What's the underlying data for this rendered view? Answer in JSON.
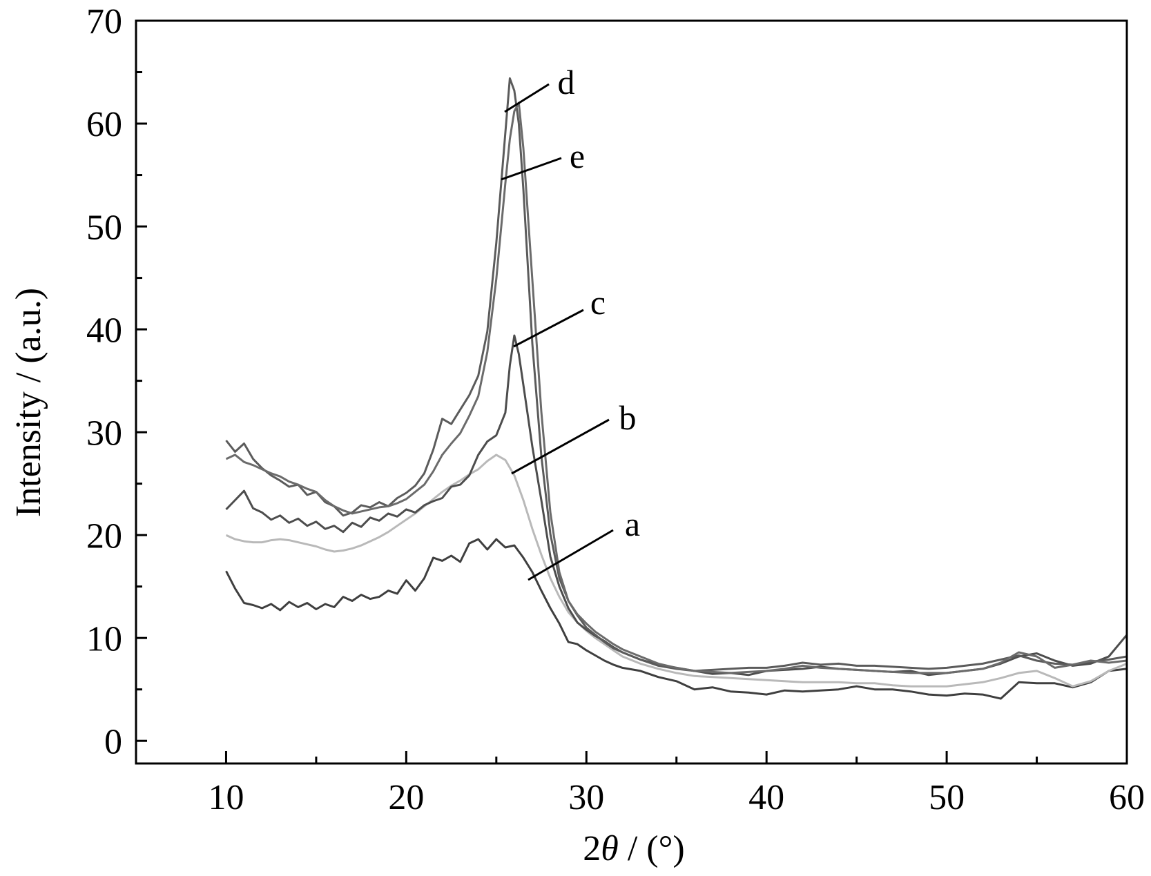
{
  "chart_data": {
    "type": "line",
    "title": "",
    "xlabel": "2θ / (°)",
    "ylabel": "Intensity / (a.u.)",
    "xlim": [
      5,
      60
    ],
    "ylim": [
      -2.2,
      70
    ],
    "xticks": [
      10,
      20,
      30,
      40,
      50,
      60
    ],
    "xticks_minor": [
      15,
      25,
      35,
      45,
      55
    ],
    "yticks": [
      0,
      10,
      20,
      30,
      40,
      50,
      60,
      70
    ],
    "yticks_minor": [
      5,
      15,
      25,
      35,
      45,
      55,
      65
    ],
    "grid": false,
    "legend": "none (series labelled directly with leader lines)",
    "series": [
      {
        "name": "a",
        "color": "#3f3f3f",
        "x": [
          10,
          10.5,
          11,
          11.5,
          12,
          12.5,
          13,
          13.5,
          14,
          14.5,
          15,
          15.5,
          16,
          16.5,
          17,
          17.5,
          18,
          18.5,
          19,
          19.5,
          20,
          20.5,
          21,
          21.5,
          22,
          22.5,
          23,
          23.5,
          24,
          24.5,
          25,
          25.5,
          26,
          26.5,
          27,
          27.5,
          28,
          28.5,
          29,
          29.5,
          30,
          30.5,
          31,
          31.5,
          32,
          33,
          34,
          35,
          36,
          37,
          38,
          39,
          40,
          41,
          42,
          43,
          44,
          45,
          46,
          47,
          48,
          49,
          50,
          51,
          52,
          53,
          54,
          55,
          56,
          57,
          58,
          59,
          60
        ],
        "y": [
          16.5,
          14.8,
          13.4,
          13.2,
          12.9,
          13.3,
          12.7,
          13.5,
          13.0,
          13.4,
          12.8,
          13.3,
          13.0,
          14.0,
          13.6,
          14.2,
          13.8,
          14.0,
          14.6,
          14.3,
          15.6,
          14.6,
          15.8,
          17.8,
          17.5,
          18.0,
          17.4,
          19.2,
          19.6,
          18.6,
          19.6,
          18.8,
          19.0,
          17.8,
          16.4,
          14.6,
          12.9,
          11.4,
          9.6,
          9.4,
          8.8,
          8.3,
          7.8,
          7.4,
          7.1,
          6.8,
          6.2,
          5.8,
          5.0,
          5.2,
          4.8,
          4.7,
          4.5,
          4.9,
          4.8,
          4.9,
          5.0,
          5.3,
          5.0,
          5.0,
          4.8,
          4.5,
          4.4,
          4.6,
          4.5,
          4.1,
          5.7,
          5.6,
          5.6,
          5.2,
          5.7,
          6.8,
          7.0
        ]
      },
      {
        "name": "b",
        "color": "#b9b9b9",
        "x": [
          10,
          10.5,
          11,
          11.5,
          12,
          12.5,
          13,
          13.5,
          14,
          14.5,
          15,
          15.5,
          16,
          16.5,
          17,
          17.5,
          18,
          18.5,
          19,
          19.5,
          20,
          20.5,
          21,
          21.5,
          22,
          22.5,
          23,
          23.5,
          24,
          24.5,
          25,
          25.5,
          26,
          26.5,
          27,
          27.5,
          28,
          28.5,
          29,
          29.5,
          30,
          30.5,
          31,
          31.5,
          32,
          33,
          34,
          35,
          36,
          37,
          38,
          39,
          40,
          41,
          42,
          43,
          44,
          45,
          46,
          47,
          48,
          49,
          50,
          51,
          52,
          53,
          54,
          55,
          56,
          57,
          58,
          59,
          60
        ],
        "y": [
          20.0,
          19.6,
          19.4,
          19.3,
          19.3,
          19.5,
          19.6,
          19.5,
          19.3,
          19.1,
          18.9,
          18.6,
          18.4,
          18.5,
          18.7,
          19.0,
          19.4,
          19.8,
          20.3,
          20.9,
          21.5,
          22.1,
          22.8,
          23.5,
          24.2,
          24.8,
          25.3,
          25.9,
          26.4,
          27.2,
          27.8,
          27.3,
          25.8,
          23.4,
          20.6,
          18.1,
          15.8,
          14.0,
          12.5,
          11.5,
          10.7,
          10.0,
          9.4,
          8.8,
          8.2,
          7.5,
          7.0,
          6.6,
          6.3,
          6.2,
          6.1,
          6.0,
          5.9,
          5.8,
          5.7,
          5.7,
          5.7,
          5.6,
          5.6,
          5.4,
          5.3,
          5.3,
          5.3,
          5.5,
          5.7,
          6.1,
          6.6,
          6.8,
          6.1,
          5.3,
          5.8,
          6.8,
          7.5
        ]
      },
      {
        "name": "c",
        "color": "#4d4d4d",
        "x": [
          10,
          10.5,
          11,
          11.5,
          12,
          12.5,
          13,
          13.5,
          14,
          14.5,
          15,
          15.5,
          16,
          16.5,
          17,
          17.5,
          18,
          18.5,
          19,
          19.5,
          20,
          20.5,
          21,
          21.5,
          22,
          22.5,
          23,
          23.5,
          24,
          24.5,
          25,
          25.5,
          25.75,
          26,
          26.25,
          26.5,
          27,
          27.5,
          28,
          28.5,
          29,
          29.5,
          30,
          30.5,
          31,
          31.5,
          32,
          33,
          34,
          35,
          36,
          37,
          38,
          39,
          40,
          41,
          42,
          43,
          44,
          45,
          46,
          47,
          48,
          49,
          50,
          51,
          52,
          53,
          54,
          55,
          56,
          57,
          58,
          59,
          60
        ],
        "y": [
          22.5,
          23.4,
          24.3,
          22.6,
          22.2,
          21.5,
          21.9,
          21.2,
          21.6,
          20.9,
          21.3,
          20.6,
          20.9,
          20.3,
          21.2,
          20.8,
          21.7,
          21.4,
          22.1,
          21.8,
          22.5,
          22.2,
          22.9,
          23.3,
          23.6,
          24.7,
          24.9,
          25.8,
          27.8,
          29.1,
          29.7,
          31.9,
          36.5,
          39.4,
          37.6,
          34.6,
          28.6,
          23.4,
          17.9,
          15.0,
          12.9,
          11.5,
          10.8,
          10.2,
          9.7,
          9.1,
          8.6,
          7.9,
          7.4,
          7.1,
          6.8,
          6.5,
          6.6,
          6.4,
          6.8,
          6.9,
          7.0,
          7.2,
          7.0,
          6.9,
          6.8,
          6.7,
          6.8,
          6.4,
          6.6,
          6.8,
          7.0,
          7.5,
          8.2,
          8.5,
          7.8,
          7.3,
          7.5,
          8.2,
          10.3
        ]
      },
      {
        "name": "d",
        "color": "#5b5b5b",
        "x": [
          10,
          10.5,
          11,
          11.5,
          12,
          12.5,
          13,
          13.5,
          14,
          14.5,
          15,
          15.5,
          16,
          16.5,
          17,
          17.5,
          18,
          18.5,
          19,
          19.5,
          20,
          20.5,
          21,
          21.5,
          22,
          22.5,
          23,
          23.5,
          24,
          24.5,
          25,
          25.5,
          25.75,
          26,
          26.25,
          26.5,
          27,
          27.5,
          28,
          28.5,
          29,
          29.5,
          30,
          30.5,
          31,
          31.5,
          32,
          33,
          34,
          35,
          36,
          37,
          38,
          39,
          40,
          41,
          42,
          43,
          44,
          45,
          46,
          47,
          48,
          49,
          50,
          51,
          52,
          53,
          54,
          55,
          56,
          57,
          58,
          59,
          60
        ],
        "y": [
          29.2,
          28.1,
          28.9,
          27.4,
          26.5,
          25.8,
          25.3,
          24.7,
          24.9,
          23.9,
          24.2,
          23.2,
          22.8,
          21.9,
          22.2,
          22.9,
          22.7,
          23.2,
          22.8,
          23.6,
          24.1,
          24.8,
          26.0,
          28.3,
          31.3,
          30.8,
          32.2,
          33.6,
          35.5,
          39.8,
          48.4,
          59.1,
          64.4,
          63.2,
          60.0,
          53.6,
          38.6,
          27.7,
          20.1,
          15.8,
          13.6,
          12.2,
          11.0,
          10.3,
          9.6,
          9.0,
          8.6,
          7.9,
          7.3,
          7.0,
          6.8,
          6.9,
          7.0,
          7.1,
          7.1,
          7.3,
          7.6,
          7.4,
          7.5,
          7.3,
          7.3,
          7.2,
          7.1,
          7.0,
          7.1,
          7.3,
          7.5,
          7.9,
          8.3,
          7.8,
          7.5,
          7.4,
          7.7,
          7.9,
          8.2
        ]
      },
      {
        "name": "e",
        "color": "#6b6b6b",
        "x": [
          10,
          10.5,
          11,
          11.5,
          12,
          12.5,
          13,
          13.5,
          14,
          14.5,
          15,
          15.5,
          16,
          16.5,
          17,
          17.5,
          18,
          18.5,
          19,
          19.5,
          20,
          20.5,
          21,
          21.5,
          22,
          22.5,
          23,
          23.5,
          24,
          24.5,
          25,
          25.5,
          25.75,
          26,
          26.25,
          26.5,
          27,
          27.5,
          28,
          28.5,
          29,
          29.5,
          30,
          30.5,
          31,
          31.5,
          32,
          33,
          34,
          35,
          36,
          37,
          38,
          39,
          40,
          41,
          42,
          43,
          44,
          45,
          46,
          47,
          48,
          49,
          50,
          51,
          52,
          53,
          54,
          55,
          56,
          57,
          58,
          59,
          60
        ],
        "y": [
          27.4,
          27.8,
          27.1,
          26.8,
          26.4,
          26.0,
          25.7,
          25.2,
          24.9,
          24.5,
          24.2,
          23.4,
          22.8,
          22.4,
          22.1,
          22.3,
          22.5,
          22.7,
          22.8,
          23.1,
          23.5,
          24.2,
          24.9,
          26.2,
          27.8,
          28.9,
          29.9,
          31.6,
          33.5,
          37.8,
          44.9,
          54.2,
          58.5,
          61.2,
          62.0,
          57.6,
          44.8,
          32.0,
          22.2,
          16.4,
          13.6,
          12.3,
          11.4,
          10.6,
          10.0,
          9.4,
          8.9,
          8.2,
          7.5,
          7.1,
          6.8,
          6.7,
          6.6,
          6.7,
          6.8,
          7.0,
          7.3,
          7.1,
          7.0,
          6.9,
          6.8,
          6.7,
          6.6,
          6.6,
          6.6,
          6.8,
          7.0,
          7.6,
          8.6,
          8.2,
          7.1,
          7.4,
          7.8,
          7.6,
          7.8
        ]
      }
    ]
  }
}
